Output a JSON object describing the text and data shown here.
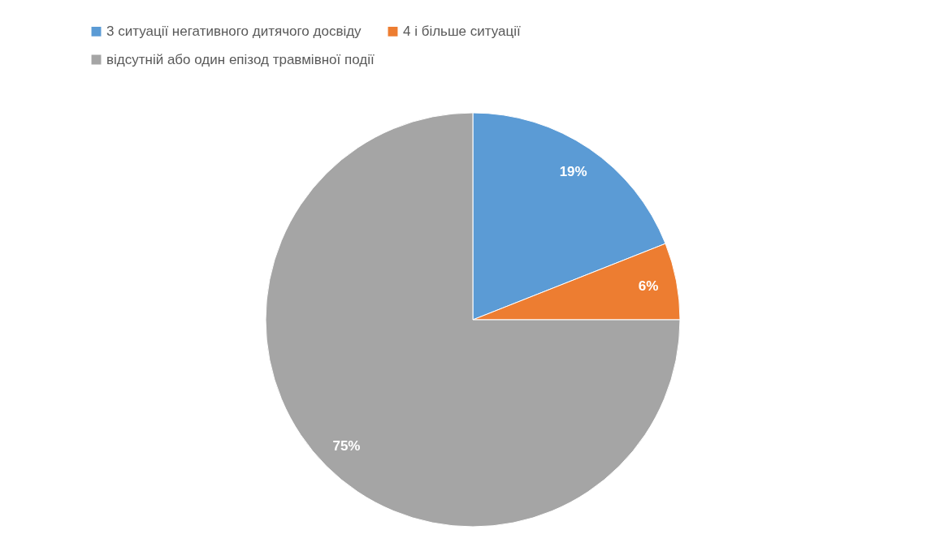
{
  "chart_data": {
    "type": "pie",
    "categories": [
      "3 ситуації негативного дитячого досвіду",
      "4 і більше ситуації",
      "відсутній або один епізод травмівної події"
    ],
    "values": [
      19,
      6,
      75
    ],
    "colors": [
      "#5b9bd5",
      "#ed7d31",
      "#a5a5a5"
    ],
    "value_labels": [
      "19%",
      "6%",
      "75%"
    ],
    "legend": "top left"
  }
}
